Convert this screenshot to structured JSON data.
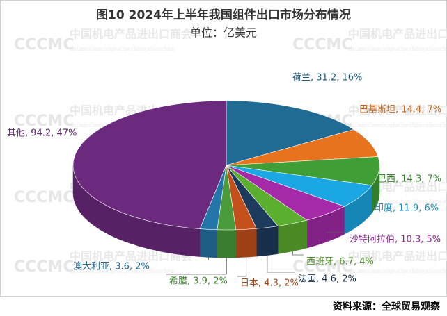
{
  "chart_data": {
    "type": "pie3d",
    "title": "图10  2024年上半年我国组件出口市场分布情况",
    "subtitle": "单位：亿美元",
    "labels": [
      "荷兰, 31.2, 16%",
      "巴基斯坦, 14.4, 7%",
      "巴西, 14.3, 7%",
      "印度, 11.9, 6%",
      "沙特阿拉伯, 10.3, 5%",
      "西班牙, 6.7, 4%",
      "法国, 4.6, 2%",
      "日本, 4.3, 2%",
      "希腊, 3.9, 2%",
      "澳大利亚, 3.6, 2%",
      "其他, 94.2, 47%"
    ],
    "values": [
      31.2,
      14.4,
      14.3,
      11.9,
      10.3,
      6.7,
      4.6,
      4.3,
      3.9,
      3.6,
      94.2
    ],
    "colors": [
      "#1f6b93",
      "#e8731f",
      "#3f9e35",
      "#1aa7e4",
      "#a42aa8",
      "#5cae2e",
      "#1d3b5c",
      "#c4501c",
      "#4a9c3a",
      "#2576a8",
      "#6b2a7e"
    ],
    "source": "资料来源：全球贸易观察",
    "watermark": {
      "logo": "CCCMC",
      "name": "中国机电产品进出口商会",
      "english": "China Chamber of Commerce for Import and Export of Machinery and Electronic Products"
    }
  }
}
